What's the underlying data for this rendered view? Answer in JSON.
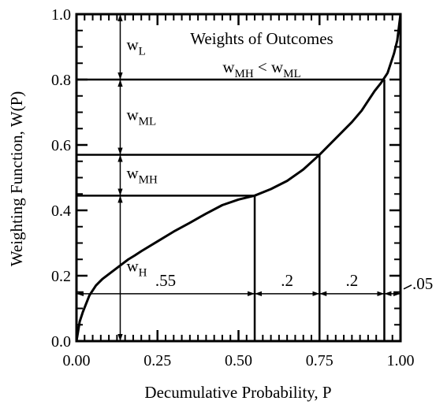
{
  "chart_data": {
    "type": "line",
    "title": "Weights of Outcomes",
    "subtitle_parts": {
      "w1": "w",
      "sub1": "MH",
      "op": " < ",
      "w2": "w",
      "sub2": "ML"
    },
    "xlabel": "Decumulative Probability, P",
    "ylabel": "Weighting Function, W(P)",
    "xlim": [
      0,
      1
    ],
    "ylim": [
      0,
      1
    ],
    "x_ticks": [
      0,
      0.25,
      0.5,
      0.75,
      1.0
    ],
    "x_tick_labels": [
      "0.00",
      "0.25",
      "0.50",
      "0.75",
      "1.00"
    ],
    "y_ticks": [
      0,
      0.2,
      0.4,
      0.6,
      0.8,
      1.0
    ],
    "y_tick_labels": [
      "0.0",
      "0.2",
      "0.4",
      "0.6",
      "0.8",
      "1.0"
    ],
    "series": [
      {
        "x": [
          0,
          0.01,
          0.02,
          0.04,
          0.06,
          0.08,
          0.1,
          0.12,
          0.14,
          0.16,
          0.18,
          0.2,
          0.25,
          0.3,
          0.35,
          0.4,
          0.45,
          0.5,
          0.55,
          0.6,
          0.65,
          0.7,
          0.75,
          0.8,
          0.85,
          0.88,
          0.9,
          0.92,
          0.94,
          0.96,
          0.98,
          0.99,
          1.0
        ],
        "y": [
          0,
          0.06,
          0.09,
          0.14,
          0.17,
          0.19,
          0.205,
          0.22,
          0.235,
          0.25,
          0.262,
          0.275,
          0.305,
          0.335,
          0.362,
          0.39,
          0.416,
          0.433,
          0.445,
          0.465,
          0.49,
          0.525,
          0.57,
          0.62,
          0.67,
          0.705,
          0.735,
          0.765,
          0.79,
          0.82,
          0.88,
          0.92,
          1.0
        ]
      }
    ],
    "decision_points": [
      {
        "p": 0.55,
        "w": 0.445
      },
      {
        "p": 0.75,
        "w": 0.57
      },
      {
        "p": 0.95,
        "w": 0.8
      }
    ],
    "vertical_weight_axis_x": 0.135,
    "weight_segments": [
      {
        "w": "w",
        "sub": "L",
        "from": 0.8,
        "to": 1.0
      },
      {
        "w": "w",
        "sub": "ML",
        "from": 0.57,
        "to": 0.8
      },
      {
        "w": "w",
        "sub": "MH",
        "from": 0.445,
        "to": 0.57
      },
      {
        "w": "w",
        "sub": "H",
        "from": 0.0,
        "to": 0.445
      }
    ],
    "probability_intervals": [
      {
        "label": ".55",
        "from": 0.0,
        "to": 0.55
      },
      {
        "label": ".2",
        "from": 0.55,
        "to": 0.75
      },
      {
        "label": ".2",
        "from": 0.75,
        "to": 0.95
      },
      {
        "label": ".05",
        "from": 0.95,
        "to": 1.0
      }
    ],
    "interval_arrow_y": 0.145,
    "grid": false,
    "legend": "none"
  }
}
